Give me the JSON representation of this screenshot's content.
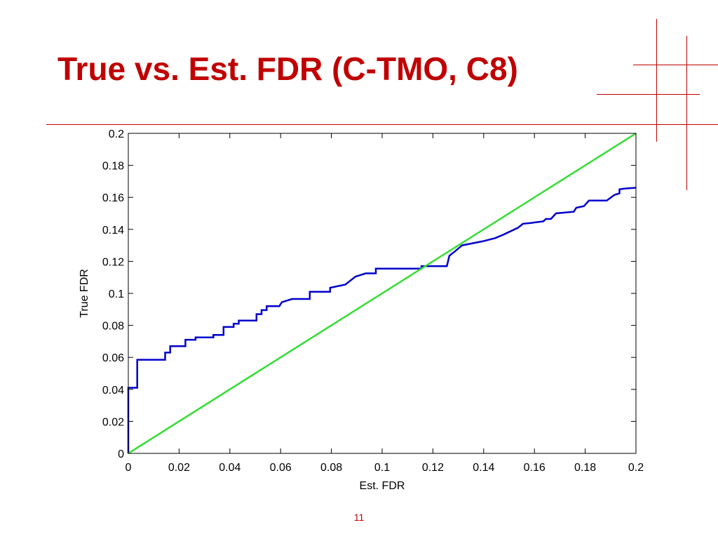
{
  "slide": {
    "title": "True vs. Est. FDR (C-TMO, C8)",
    "page_number": "11",
    "accent_color": "#c00000"
  },
  "chart_data": {
    "type": "line",
    "title": "",
    "xlabel": "Est. FDR",
    "ylabel": "True FDR",
    "xlim": [
      0,
      0.2
    ],
    "ylim": [
      0,
      0.2
    ],
    "xticks": [
      "0",
      "0.02",
      "0.04",
      "0.06",
      "0.08",
      "0.1",
      "0.12",
      "0.14",
      "0.16",
      "0.18",
      "0.2"
    ],
    "yticks": [
      "0",
      "0.02",
      "0.04",
      "0.06",
      "0.08",
      "0.1",
      "0.12",
      "0.14",
      "0.16",
      "0.18",
      "0.2"
    ],
    "grid": false,
    "legend": "none",
    "series": [
      {
        "color": "#0000cc",
        "points": [
          [
            0.0,
            0.0
          ],
          [
            0.0,
            0.041
          ],
          [
            0.0035,
            0.041
          ],
          [
            0.0035,
            0.0585
          ],
          [
            0.0145,
            0.0585
          ],
          [
            0.0145,
            0.063
          ],
          [
            0.0165,
            0.063
          ],
          [
            0.0165,
            0.067
          ],
          [
            0.0225,
            0.067
          ],
          [
            0.0225,
            0.071
          ],
          [
            0.0265,
            0.071
          ],
          [
            0.0265,
            0.0725
          ],
          [
            0.0335,
            0.0725
          ],
          [
            0.0335,
            0.074
          ],
          [
            0.0375,
            0.074
          ],
          [
            0.0375,
            0.079
          ],
          [
            0.0415,
            0.079
          ],
          [
            0.0415,
            0.081
          ],
          [
            0.0435,
            0.081
          ],
          [
            0.0435,
            0.083
          ],
          [
            0.0505,
            0.083
          ],
          [
            0.0505,
            0.087
          ],
          [
            0.0525,
            0.087
          ],
          [
            0.0525,
            0.0895
          ],
          [
            0.0545,
            0.0895
          ],
          [
            0.0545,
            0.092
          ],
          [
            0.0595,
            0.092
          ],
          [
            0.0605,
            0.0945
          ],
          [
            0.0625,
            0.0955
          ],
          [
            0.0645,
            0.0965
          ],
          [
            0.0715,
            0.0965
          ],
          [
            0.0715,
            0.101
          ],
          [
            0.0795,
            0.101
          ],
          [
            0.0795,
            0.1035
          ],
          [
            0.0855,
            0.1055
          ],
          [
            0.0875,
            0.108
          ],
          [
            0.0895,
            0.1105
          ],
          [
            0.0935,
            0.1125
          ],
          [
            0.0975,
            0.1125
          ],
          [
            0.0975,
            0.1155
          ],
          [
            0.1155,
            0.1155
          ],
          [
            0.1155,
            0.117
          ],
          [
            0.1255,
            0.117
          ],
          [
            0.1265,
            0.1235
          ],
          [
            0.1285,
            0.126
          ],
          [
            0.1315,
            0.13
          ],
          [
            0.1395,
            0.1325
          ],
          [
            0.1445,
            0.1345
          ],
          [
            0.1475,
            0.1365
          ],
          [
            0.1535,
            0.141
          ],
          [
            0.1555,
            0.1435
          ],
          [
            0.1585,
            0.144
          ],
          [
            0.1635,
            0.145
          ],
          [
            0.1645,
            0.1465
          ],
          [
            0.1665,
            0.1465
          ],
          [
            0.1685,
            0.15
          ],
          [
            0.1755,
            0.151
          ],
          [
            0.1765,
            0.1535
          ],
          [
            0.1795,
            0.1545
          ],
          [
            0.1815,
            0.158
          ],
          [
            0.1885,
            0.158
          ],
          [
            0.1915,
            0.1615
          ],
          [
            0.1935,
            0.1625
          ],
          [
            0.1935,
            0.165
          ],
          [
            0.1955,
            0.1655
          ],
          [
            0.2,
            0.166
          ]
        ]
      },
      {
        "color": "#33dd33",
        "points": [
          [
            0.0,
            0.0
          ],
          [
            0.2,
            0.2
          ]
        ]
      }
    ]
  }
}
